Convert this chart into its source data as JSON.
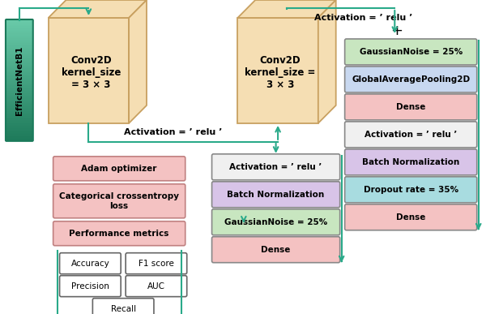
{
  "bg_color": "#ffffff",
  "arrow_color": "#2aaa8a",
  "efficientnet_color_top": "#5cbf9e",
  "efficientnet_color_bot": "#2a8a6a",
  "efficientnet_label": "EfficientNetB1",
  "conv_face_color": "#f5deb3",
  "conv_edge_color": "#c8a060",
  "conv1_label": "Conv2D\nkernel_size\n= 3 × 3",
  "conv2_label": "Conv2D\nkernel_size =\n3 × 3",
  "activation_top_label": "Activation = ’ relu ’",
  "activation_bot_label": "Activation = ’ relu ’",
  "plus_label": "+",
  "col3_boxes": [
    {
      "label": "GaussianNoise = 25%",
      "fc": "#c8e6c0",
      "ec": "#888888"
    },
    {
      "label": "GlobalAveragePooling2D",
      "fc": "#c8d8f0",
      "ec": "#888888"
    },
    {
      "label": "Dense",
      "fc": "#f4c2c2",
      "ec": "#888888"
    },
    {
      "label": "Activation = ’ relu ’",
      "fc": "#f0f0f0",
      "ec": "#888888"
    },
    {
      "label": "Batch Normalization",
      "fc": "#d8c4e8",
      "ec": "#888888"
    },
    {
      "label": "Dropout rate = 35%",
      "fc": "#a8dce0",
      "ec": "#888888"
    },
    {
      "label": "Dense",
      "fc": "#f4c2c2",
      "ec": "#888888"
    }
  ],
  "col2_boxes": [
    {
      "label": "Activation = ’ relu ’",
      "fc": "#f0f0f0",
      "ec": "#888888"
    },
    {
      "label": "Batch Normalization",
      "fc": "#d8c4e8",
      "ec": "#888888"
    },
    {
      "label": "GaussianNoise = 25%",
      "fc": "#c8e6c0",
      "ec": "#888888"
    },
    {
      "label": "Dense",
      "fc": "#f4c2c2",
      "ec": "#888888"
    }
  ],
  "col1_boxes": [
    {
      "label": "Adam optimizer",
      "fc": "#f4c2c2",
      "ec": "#c08080"
    },
    {
      "label": "Categorical crossentropy\nloss",
      "fc": "#f4c2c2",
      "ec": "#c08080"
    },
    {
      "label": "Performance metrics",
      "fc": "#f4c2c2",
      "ec": "#c08080"
    }
  ]
}
